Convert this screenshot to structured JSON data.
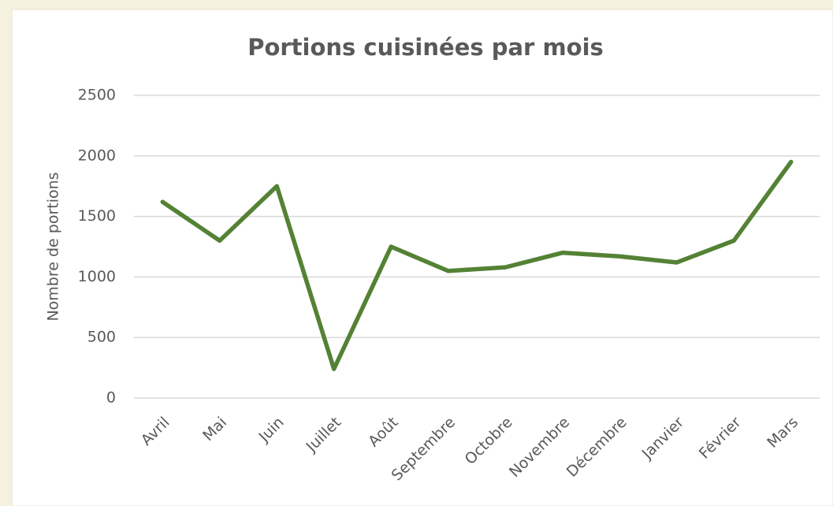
{
  "chart_data": {
    "type": "line",
    "title": "Portions cuisinées par mois",
    "y_label": "Nombre de portions",
    "categories": [
      "Avril",
      "Mai",
      "Juin",
      "Juillet",
      "Août",
      "Septembre",
      "Octobre",
      "Novembre",
      "Décembre",
      "Janvier",
      "Février",
      "Mars"
    ],
    "series": [
      {
        "name": "Portions",
        "color": "#548235",
        "values": [
          1620,
          1300,
          1750,
          240,
          1250,
          1050,
          1080,
          1200,
          1170,
          1120,
          1300,
          1950
        ]
      }
    ],
    "ylim": [
      0,
      2500
    ],
    "yticks": [
      0,
      500,
      1000,
      1500,
      2000,
      2500
    ],
    "grid": true
  }
}
